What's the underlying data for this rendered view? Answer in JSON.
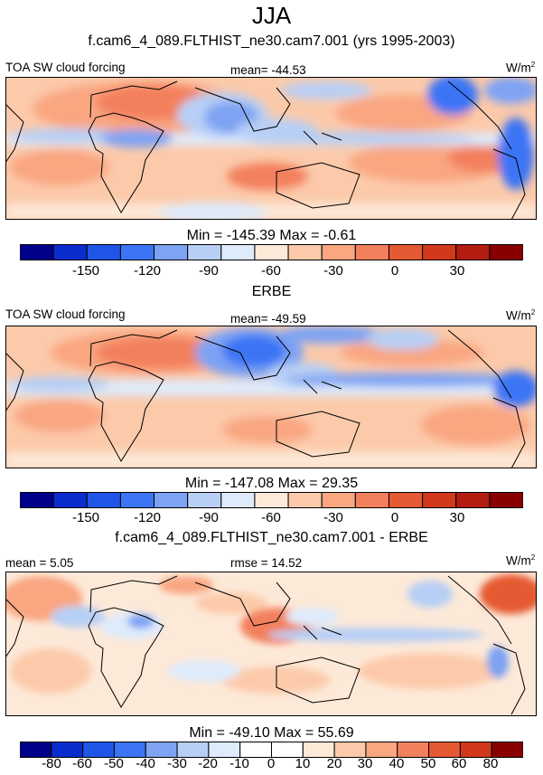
{
  "title": "JJA",
  "panels": [
    {
      "subtitle": "f.cam6_4_089.FLTHIST_ne30.cam7.001 (yrs 1995-2003)",
      "left_label": "TOA SW cloud forcing",
      "center_label": "mean= -44.53",
      "units": "W/m",
      "units_exp": "2",
      "minmax": "Min = -145.39 Max =  -0.61",
      "colorbar_ticks": [
        "-150",
        "-120",
        "-90",
        "-60",
        "-30",
        "0",
        "30"
      ]
    },
    {
      "subtitle": "ERBE",
      "left_label": "TOA SW cloud forcing",
      "center_label": "mean= -49.59",
      "units": "W/m",
      "units_exp": "2",
      "minmax": "Min = -147.08 Max =  29.35",
      "colorbar_ticks": [
        "-150",
        "-120",
        "-90",
        "-60",
        "-30",
        "0",
        "30"
      ]
    },
    {
      "subtitle": "f.cam6_4_089.FLTHIST_ne30.cam7.001 - ERBE",
      "left_label": "mean =   5.05",
      "center_label": "rmse =  14.52",
      "units": "W/m",
      "units_exp": "2",
      "minmax": "Min = -49.10 Max =  55.69",
      "colorbar_ticks": [
        "-80",
        "-60",
        "-50",
        "-40",
        "-30",
        "-20",
        "-10",
        "0",
        "10",
        "20",
        "30",
        "40",
        "50",
        "60",
        "80"
      ]
    }
  ],
  "colors": {
    "main_scale": [
      "#00008b",
      "#0a2ccc",
      "#1f56e8",
      "#3b75f5",
      "#7ea3f3",
      "#b7cff5",
      "#deebfb",
      "#fde9d8",
      "#fccaaa",
      "#f9a681",
      "#f3805d",
      "#e55a32",
      "#d1381c",
      "#b31d10",
      "#880000"
    ],
    "diff_scale": [
      "#00008b",
      "#0a2ccc",
      "#1f56e8",
      "#3b75f5",
      "#7ea3f3",
      "#b7cff5",
      "#deebfb",
      "#ffffff",
      "#ffffff",
      "#fde9d8",
      "#fccaaa",
      "#f9a681",
      "#f3805d",
      "#e55a32",
      "#d1381c",
      "#880000"
    ]
  }
}
